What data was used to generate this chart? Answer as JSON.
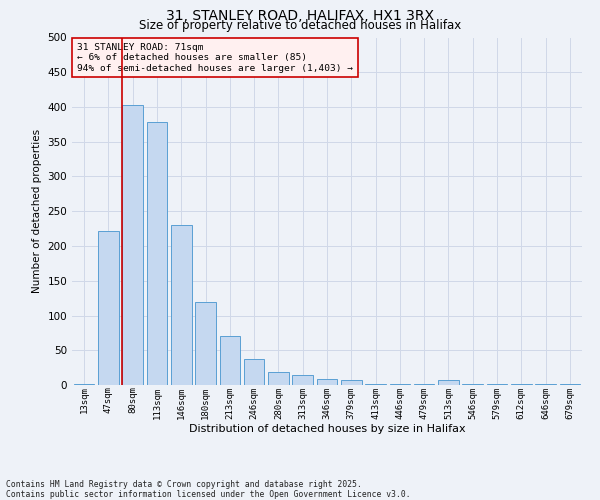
{
  "title1": "31, STANLEY ROAD, HALIFAX, HX1 3RX",
  "title2": "Size of property relative to detached houses in Halifax",
  "xlabel": "Distribution of detached houses by size in Halifax",
  "ylabel": "Number of detached properties",
  "categories": [
    "13sqm",
    "47sqm",
    "80sqm",
    "113sqm",
    "146sqm",
    "180sqm",
    "213sqm",
    "246sqm",
    "280sqm",
    "313sqm",
    "346sqm",
    "379sqm",
    "413sqm",
    "446sqm",
    "479sqm",
    "513sqm",
    "546sqm",
    "579sqm",
    "612sqm",
    "646sqm",
    "679sqm"
  ],
  "values": [
    2,
    222,
    403,
    378,
    230,
    120,
    70,
    38,
    18,
    14,
    8,
    7,
    1,
    1,
    1,
    7,
    1,
    1,
    1,
    1,
    1
  ],
  "bar_color": "#c5d8f0",
  "bar_edge_color": "#5a9fd4",
  "grid_color": "#d0d8e8",
  "bg_color": "#eef2f8",
  "annotation_line1": "31 STANLEY ROAD: 71sqm",
  "annotation_line2": "← 6% of detached houses are smaller (85)",
  "annotation_line3": "94% of semi-detached houses are larger (1,403) →",
  "vline_x_index": 2,
  "vline_color": "#cc0000",
  "annotation_box_facecolor": "#fff0f0",
  "annotation_box_edgecolor": "#cc0000",
  "footer_line1": "Contains HM Land Registry data © Crown copyright and database right 2025.",
  "footer_line2": "Contains public sector information licensed under the Open Government Licence v3.0.",
  "ylim": [
    0,
    500
  ],
  "yticks": [
    0,
    50,
    100,
    150,
    200,
    250,
    300,
    350,
    400,
    450,
    500
  ]
}
